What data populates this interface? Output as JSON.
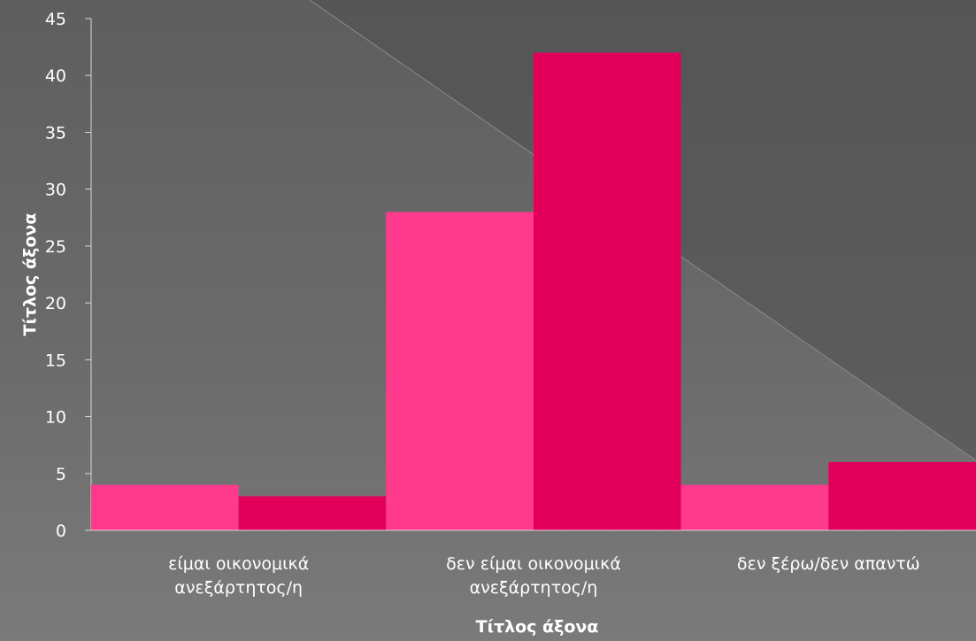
{
  "chart_data": {
    "type": "bar",
    "categories": [
      [
        "είμαι οικονομικά",
        "ανεξάρτητος/η"
      ],
      [
        "δεν είμαι οικονομικά",
        "ανεξάρτητος/η"
      ],
      [
        "δεν ξέρω/δεν απαντώ"
      ]
    ],
    "series": [
      {
        "values": [
          4,
          28,
          4
        ],
        "color": "#ff3a8c"
      },
      {
        "values": [
          3,
          42,
          6
        ],
        "color": "#e3005a"
      }
    ],
    "ylim": [
      0,
      45
    ],
    "yticks": [
      0,
      5,
      10,
      15,
      20,
      25,
      30,
      35,
      40,
      45
    ],
    "xlabel": "Τίτλος άξονα",
    "ylabel": "Τίτλος άξονα",
    "grid": false,
    "legend": "none"
  }
}
